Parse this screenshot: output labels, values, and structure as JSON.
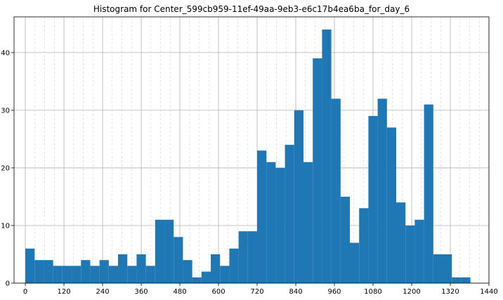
{
  "chart_data": {
    "type": "bar",
    "title": "Histogram for Center_599cb959-11ef-49aa-9eb3-e6c17b4ea6ba_for_day_6",
    "xlabel": "",
    "ylabel": "",
    "xlim": [
      -35,
      1440
    ],
    "ylim": [
      0,
      46.2
    ],
    "bin_width": 28.8,
    "bin_start": 0,
    "values": [
      6,
      4,
      4,
      3,
      3,
      3,
      4,
      3,
      4,
      3,
      5,
      3,
      5,
      3,
      11,
      11,
      8,
      4,
      1,
      2,
      5,
      3,
      6,
      9,
      9,
      23,
      21,
      20,
      24,
      30,
      21,
      39,
      44,
      32,
      15,
      7,
      13,
      29,
      32,
      27,
      14,
      10,
      11,
      31,
      5,
      5,
      1,
      1
    ],
    "x_ticks": [
      "0",
      "120",
      "240",
      "360",
      "480",
      "600",
      "720",
      "840",
      "960",
      "1080",
      "1200",
      "1320",
      "1440"
    ],
    "y_ticks": [
      "0",
      "10",
      "20",
      "30",
      "40"
    ],
    "bar_color": "#1f77b4",
    "grid": true,
    "minor_grid_x": true
  }
}
